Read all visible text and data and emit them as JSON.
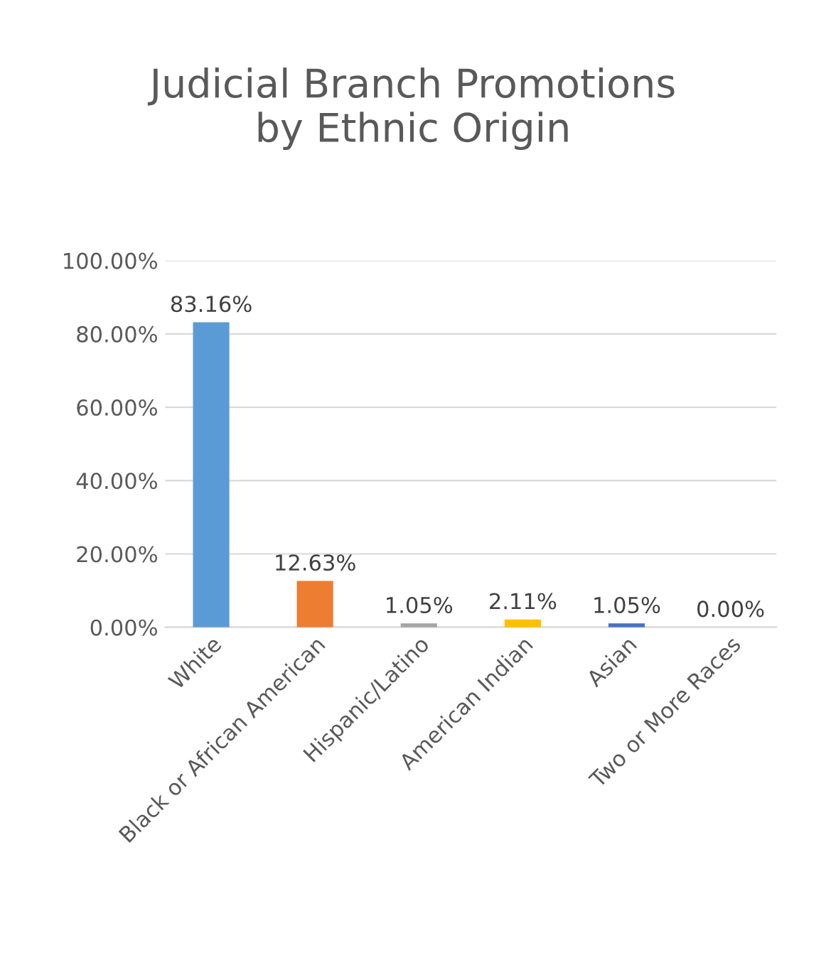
{
  "chart_data": {
    "type": "bar",
    "title": "Judicial Branch Promotions\nby Ethnic Origin",
    "categories": [
      "White",
      "Black or African American",
      "Hispanic/Latino",
      "American Indian",
      "Asian",
      "Two or More Races"
    ],
    "values": [
      83.16,
      12.63,
      1.05,
      2.11,
      1.05,
      0.0
    ],
    "colors": [
      "#5b9bd5",
      "#ed7d31",
      "#a5a5a5",
      "#ffc000",
      "#4472c4",
      "#70ad47"
    ],
    "value_labels": [
      "83.16%",
      "12.63%",
      "1.05%",
      "2.11%",
      "1.05%",
      "0.00%"
    ],
    "ylim": [
      0,
      100
    ],
    "yticks": [
      {
        "value": 0,
        "label": "0.00%"
      },
      {
        "value": 20,
        "label": "20.00%"
      },
      {
        "value": 40,
        "label": "40.00%"
      },
      {
        "value": 60,
        "label": "60.00%"
      },
      {
        "value": 80,
        "label": "80.00%"
      },
      {
        "value": 100,
        "label": "100.00%"
      }
    ],
    "grid": "y",
    "legend": false
  }
}
